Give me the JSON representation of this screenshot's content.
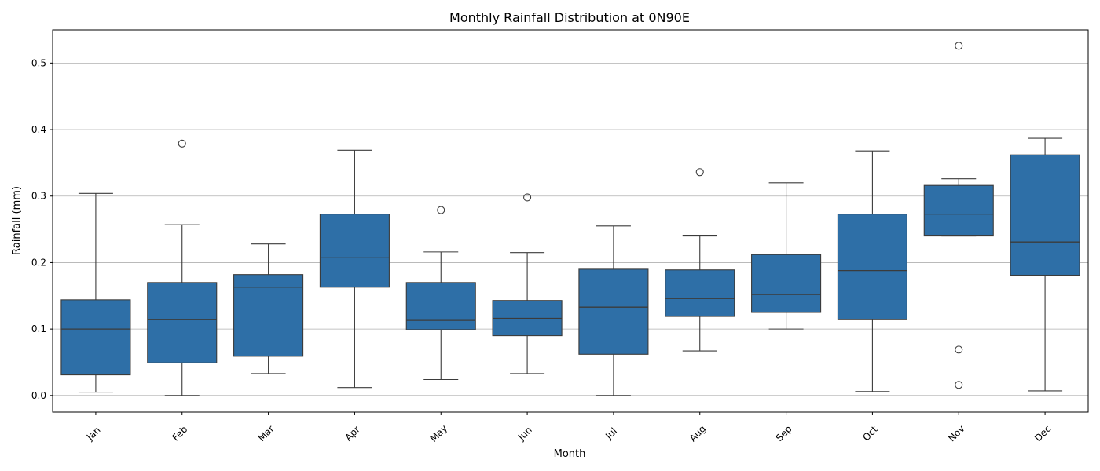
{
  "chart_data": {
    "type": "box",
    "title": "Monthly Rainfall Distribution at 0N90E",
    "xlabel": "Month",
    "ylabel": "Rainfall (mm)",
    "ylim": [
      -0.025,
      0.55
    ],
    "yticks": [
      "0.0",
      "0.1",
      "0.2",
      "0.3",
      "0.4",
      "0.5"
    ],
    "grid": "y",
    "box_color": "#2e6fa7",
    "categories": [
      "Jan",
      "Feb",
      "Mar",
      "Apr",
      "May",
      "Jun",
      "Jul",
      "Aug",
      "Sep",
      "Oct",
      "Nov",
      "Dec"
    ],
    "boxes": [
      {
        "whisker_low": 0.005,
        "q1": 0.031,
        "median": 0.1,
        "q3": 0.144,
        "whisker_high": 0.304,
        "outliers": []
      },
      {
        "whisker_low": 0.0,
        "q1": 0.049,
        "median": 0.114,
        "q3": 0.17,
        "whisker_high": 0.257,
        "outliers": [
          0.379
        ]
      },
      {
        "whisker_low": 0.033,
        "q1": 0.059,
        "median": 0.163,
        "q3": 0.182,
        "whisker_high": 0.228,
        "outliers": []
      },
      {
        "whisker_low": 0.012,
        "q1": 0.163,
        "median": 0.208,
        "q3": 0.273,
        "whisker_high": 0.369,
        "outliers": []
      },
      {
        "whisker_low": 0.024,
        "q1": 0.099,
        "median": 0.113,
        "q3": 0.17,
        "whisker_high": 0.216,
        "outliers": [
          0.279
        ]
      },
      {
        "whisker_low": 0.033,
        "q1": 0.09,
        "median": 0.116,
        "q3": 0.143,
        "whisker_high": 0.215,
        "outliers": [
          0.298
        ]
      },
      {
        "whisker_low": 0.0,
        "q1": 0.062,
        "median": 0.133,
        "q3": 0.19,
        "whisker_high": 0.255,
        "outliers": []
      },
      {
        "whisker_low": 0.067,
        "q1": 0.119,
        "median": 0.146,
        "q3": 0.189,
        "whisker_high": 0.24,
        "outliers": [
          0.336
        ]
      },
      {
        "whisker_low": 0.1,
        "q1": 0.125,
        "median": 0.152,
        "q3": 0.212,
        "whisker_high": 0.32,
        "outliers": []
      },
      {
        "whisker_low": 0.006,
        "q1": 0.114,
        "median": 0.188,
        "q3": 0.273,
        "whisker_high": 0.368,
        "outliers": []
      },
      {
        "whisker_low": 0.24,
        "q1": 0.24,
        "median": 0.273,
        "q3": 0.316,
        "whisker_high": 0.326,
        "outliers": [
          0.526,
          0.069,
          0.016
        ]
      },
      {
        "whisker_low": 0.007,
        "q1": 0.181,
        "median": 0.231,
        "q3": 0.362,
        "whisker_high": 0.387,
        "outliers": []
      }
    ]
  }
}
